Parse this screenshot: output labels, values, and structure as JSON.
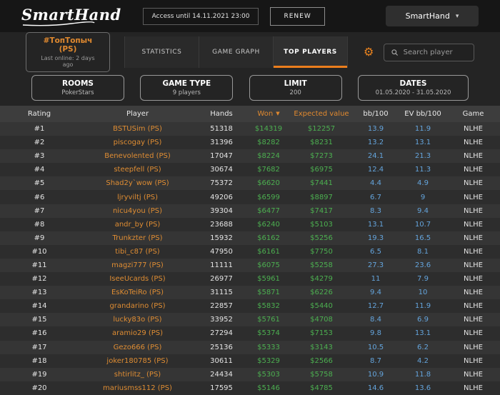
{
  "topbar": {
    "logo": "SmartHand",
    "access_badge": "Access until 14.11.2021 23:00",
    "renew_label": "RENEW",
    "account_label": "SmartHand"
  },
  "nav": {
    "profile_tab": {
      "title": "#ТопТопыч (PS)",
      "subtitle": "Last online: 2 days ago"
    },
    "tabs": [
      {
        "label": "STATISTICS",
        "active": false
      },
      {
        "label": "GAME GRAPH",
        "active": false
      },
      {
        "label": "TOP PLAYERS",
        "active": true
      }
    ],
    "search_placeholder": "Search player"
  },
  "filters": [
    {
      "title": "ROOMS",
      "value": "PokerStars"
    },
    {
      "title": "GAME TYPE",
      "value": "9 players"
    },
    {
      "title": "LIMIT",
      "value": "200"
    },
    {
      "title": "DATES",
      "value": "01.05.2020 - 31.05.2020"
    }
  ],
  "table": {
    "columns": [
      "Rating",
      "Player",
      "Hands",
      "Won",
      "Expected value",
      "bb/100",
      "EV bb/100",
      "Game"
    ],
    "sort_column": "Won",
    "sort_direction": "desc",
    "rows": [
      {
        "rating": "#1",
        "player": "BSTUSim (PS)",
        "hands": "51318",
        "won": "$14319",
        "ev": "$12257",
        "bb100": "13.9",
        "evbb100": "11.9",
        "game": "NLHE"
      },
      {
        "rating": "#2",
        "player": "piscogay (PS)",
        "hands": "31396",
        "won": "$8282",
        "ev": "$8231",
        "bb100": "13.2",
        "evbb100": "13.1",
        "game": "NLHE"
      },
      {
        "rating": "#3",
        "player": "Benevolented (PS)",
        "hands": "17047",
        "won": "$8224",
        "ev": "$7273",
        "bb100": "24.1",
        "evbb100": "21.3",
        "game": "NLHE"
      },
      {
        "rating": "#4",
        "player": "steepfell (PS)",
        "hands": "30674",
        "won": "$7682",
        "ev": "$6975",
        "bb100": "12.4",
        "evbb100": "11.3",
        "game": "NLHE"
      },
      {
        "rating": "#5",
        "player": "Shad2y`wow (PS)",
        "hands": "75372",
        "won": "$6620",
        "ev": "$7441",
        "bb100": "4.4",
        "evbb100": "4.9",
        "game": "NLHE"
      },
      {
        "rating": "#6",
        "player": "ljryviltj (PS)",
        "hands": "49206",
        "won": "$6599",
        "ev": "$8897",
        "bb100": "6.7",
        "evbb100": "9",
        "game": "NLHE"
      },
      {
        "rating": "#7",
        "player": "nicu4you (PS)",
        "hands": "39304",
        "won": "$6477",
        "ev": "$7417",
        "bb100": "8.3",
        "evbb100": "9.4",
        "game": "NLHE"
      },
      {
        "rating": "#8",
        "player": "andr_by (PS)",
        "hands": "23688",
        "won": "$6240",
        "ev": "$5103",
        "bb100": "13.1",
        "evbb100": "10.7",
        "game": "NLHE"
      },
      {
        "rating": "#9",
        "player": "Trunkzter (PS)",
        "hands": "15932",
        "won": "$6162",
        "ev": "$5256",
        "bb100": "19.3",
        "evbb100": "16.5",
        "game": "NLHE"
      },
      {
        "rating": "#10",
        "player": "tibi_c87 (PS)",
        "hands": "47950",
        "won": "$6161",
        "ev": "$7750",
        "bb100": "6.5",
        "evbb100": "8.1",
        "game": "NLHE"
      },
      {
        "rating": "#11",
        "player": "magzi777 (PS)",
        "hands": "11111",
        "won": "$6075",
        "ev": "$5258",
        "bb100": "27.3",
        "evbb100": "23.6",
        "game": "NLHE"
      },
      {
        "rating": "#12",
        "player": "IseeUcards (PS)",
        "hands": "26977",
        "won": "$5961",
        "ev": "$4279",
        "bb100": "11",
        "evbb100": "7.9",
        "game": "NLHE"
      },
      {
        "rating": "#13",
        "player": "EsKoTeiRo (PS)",
        "hands": "31115",
        "won": "$5871",
        "ev": "$6226",
        "bb100": "9.4",
        "evbb100": "10",
        "game": "NLHE"
      },
      {
        "rating": "#14",
        "player": "grandarino (PS)",
        "hands": "22857",
        "won": "$5832",
        "ev": "$5440",
        "bb100": "12.7",
        "evbb100": "11.9",
        "game": "NLHE"
      },
      {
        "rating": "#15",
        "player": "lucky83o (PS)",
        "hands": "33952",
        "won": "$5761",
        "ev": "$4708",
        "bb100": "8.4",
        "evbb100": "6.9",
        "game": "NLHE"
      },
      {
        "rating": "#16",
        "player": "aramio29 (PS)",
        "hands": "27294",
        "won": "$5374",
        "ev": "$7153",
        "bb100": "9.8",
        "evbb100": "13.1",
        "game": "NLHE"
      },
      {
        "rating": "#17",
        "player": "Gezo666 (PS)",
        "hands": "25136",
        "won": "$5333",
        "ev": "$3143",
        "bb100": "10.5",
        "evbb100": "6.2",
        "game": "NLHE"
      },
      {
        "rating": "#18",
        "player": "joker180785 (PS)",
        "hands": "30611",
        "won": "$5329",
        "ev": "$2566",
        "bb100": "8.7",
        "evbb100": "4.2",
        "game": "NLHE"
      },
      {
        "rating": "#19",
        "player": "shtirlitz_ (PS)",
        "hands": "24434",
        "won": "$5303",
        "ev": "$5758",
        "bb100": "10.9",
        "evbb100": "11.8",
        "game": "NLHE"
      },
      {
        "rating": "#20",
        "player": "mariusmss112 (PS)",
        "hands": "17595",
        "won": "$5146",
        "ev": "$4785",
        "bb100": "14.6",
        "evbb100": "13.6",
        "game": "NLHE"
      }
    ]
  },
  "colors": {
    "accent_orange": "#e0892f",
    "tab_underline_orange": "#ec7e1d",
    "won_green": "#4caf50",
    "bb_blue": "#64a4dc",
    "topbar_bg": "#161616",
    "panel_bg": "#242424"
  }
}
